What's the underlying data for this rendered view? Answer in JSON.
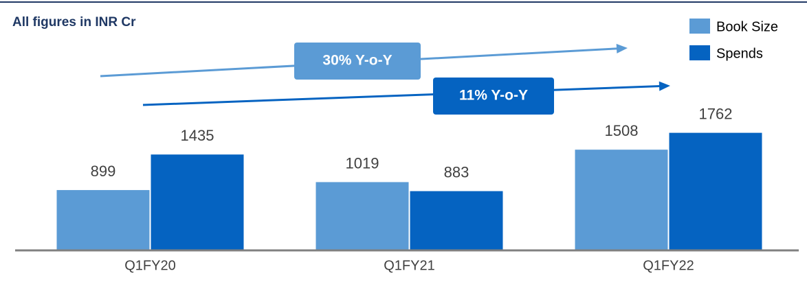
{
  "chart_data": {
    "type": "bar",
    "title": "All figures in INR Cr",
    "categories": [
      "Q1FY20",
      "Q1FY21",
      "Q1FY22"
    ],
    "series": [
      {
        "name": "Book Size",
        "color": "#5b9bd5",
        "values": [
          899,
          1019,
          1508
        ]
      },
      {
        "name": "Spends",
        "color": "#0563c1",
        "values": [
          1435,
          883,
          1762
        ]
      }
    ],
    "annotations": [
      {
        "text": "30% Y-o-Y",
        "color": "#5b9bd5"
      },
      {
        "text": "11% Y-o-Y",
        "color": "#0563c1"
      }
    ]
  }
}
